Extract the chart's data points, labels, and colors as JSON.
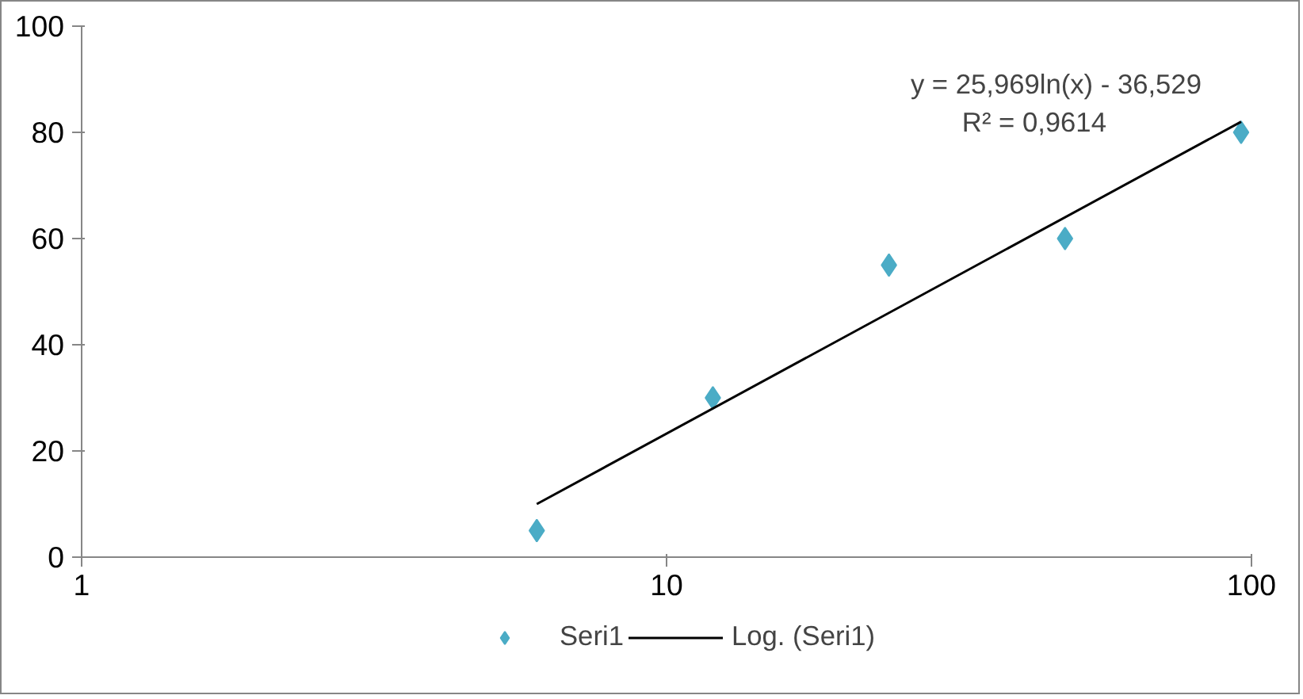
{
  "chart_data": {
    "type": "scatter",
    "log": "x",
    "xlim": [
      1,
      100
    ],
    "xticks": [
      1,
      10,
      100
    ],
    "ylim": [
      0,
      100
    ],
    "yticks": [
      0,
      20,
      40,
      60,
      80,
      100
    ],
    "grid": false,
    "legend": "bottom",
    "marker": "diamond",
    "x": [
      6,
      12,
      24,
      48,
      96
    ],
    "series": [
      {
        "name": "Seri1",
        "color": "#4bacc6",
        "values": [
          5,
          30,
          55,
          60,
          80
        ]
      },
      {
        "name": "Log. (Seri1)",
        "type": "line",
        "color": "#000000",
        "x": [
          6,
          96
        ],
        "values": [
          10.0,
          82.0
        ],
        "marker": "none",
        "line_style": "solid"
      }
    ],
    "annotations": [
      {
        "text": "y = 25,969ln(x) - 36,529",
        "x": 96,
        "y": 82.0
      },
      "R² = 0,9614"
    ]
  }
}
